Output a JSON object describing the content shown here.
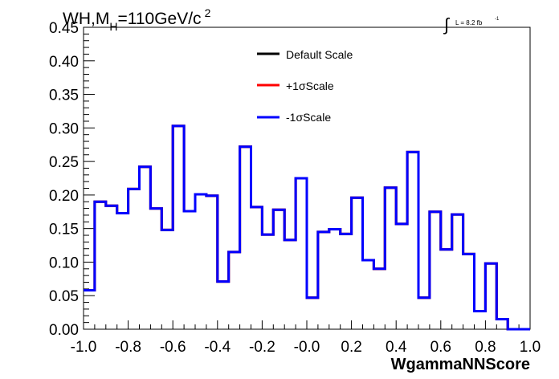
{
  "chart_data": {
    "type": "line",
    "title_parts": [
      "WH,M",
      "H",
      "=110GeV/c",
      "2"
    ],
    "lumi_parts": [
      "∫",
      "L = 8.2 fb",
      "-1"
    ],
    "xlabel": "WgammaNNScore",
    "ylabel": "",
    "xlim": [
      -1.0,
      1.0
    ],
    "ylim": [
      0,
      0.45
    ],
    "x_ticks": [
      "-1.0",
      "-0.8",
      "-0.6",
      "-0.4",
      "-0.2",
      "-0.0",
      "0.2",
      "0.4",
      "0.6",
      "0.8",
      "1.0"
    ],
    "y_ticks": [
      "0.00",
      "0.05",
      "0.10",
      "0.15",
      "0.20",
      "0.25",
      "0.30",
      "0.35",
      "0.40",
      "0.45"
    ],
    "grid": false,
    "legend_position": "top-center",
    "bin_edges": [
      -0.95,
      -0.9,
      -0.85,
      -0.8,
      -0.75,
      -0.7,
      -0.65,
      -0.6,
      -0.55,
      -0.5,
      -0.45,
      -0.4,
      -0.35,
      -0.3,
      -0.25,
      -0.2,
      -0.15,
      -0.1,
      -0.05,
      0.0,
      0.05,
      0.1,
      0.15,
      0.2,
      0.25,
      0.3,
      0.35,
      0.4,
      0.45,
      0.5,
      0.55,
      0.6,
      0.65,
      0.7,
      0.75,
      0.8,
      0.85,
      0.9,
      0.95
    ],
    "series": [
      {
        "name": "Default Scale",
        "color": "#000000",
        "values": [
          0.058,
          0.19,
          0.184,
          0.173,
          0.209,
          0.242,
          0.18,
          0.148,
          0.303,
          0.176,
          0.201,
          0.199,
          0.071,
          0.115,
          0.272,
          0.182,
          0.141,
          0.178,
          0.133,
          0.225,
          0.047,
          0.145,
          0.149,
          0.142,
          0.196,
          0.103,
          0.09,
          0.211,
          0.157,
          0.264,
          0.047,
          0.175,
          0.119,
          0.171,
          0.112,
          0.027,
          0.098,
          0.015,
          0.0
        ]
      },
      {
        "name": "+1σScale",
        "color": "#ff0000",
        "values": [
          0.058,
          0.19,
          0.184,
          0.173,
          0.209,
          0.242,
          0.18,
          0.148,
          0.303,
          0.176,
          0.201,
          0.199,
          0.071,
          0.115,
          0.272,
          0.182,
          0.141,
          0.178,
          0.133,
          0.225,
          0.047,
          0.145,
          0.149,
          0.142,
          0.196,
          0.103,
          0.09,
          0.211,
          0.157,
          0.264,
          0.047,
          0.175,
          0.119,
          0.171,
          0.112,
          0.027,
          0.098,
          0.015,
          0.0
        ]
      },
      {
        "name": "-1σScale",
        "color": "#0000ff",
        "values": [
          0.058,
          0.19,
          0.184,
          0.173,
          0.209,
          0.242,
          0.18,
          0.148,
          0.303,
          0.176,
          0.201,
          0.199,
          0.071,
          0.115,
          0.272,
          0.182,
          0.141,
          0.178,
          0.133,
          0.225,
          0.047,
          0.145,
          0.149,
          0.142,
          0.196,
          0.103,
          0.09,
          0.211,
          0.157,
          0.264,
          0.047,
          0.175,
          0.119,
          0.171,
          0.112,
          0.027,
          0.098,
          0.015,
          0.0
        ]
      }
    ]
  }
}
